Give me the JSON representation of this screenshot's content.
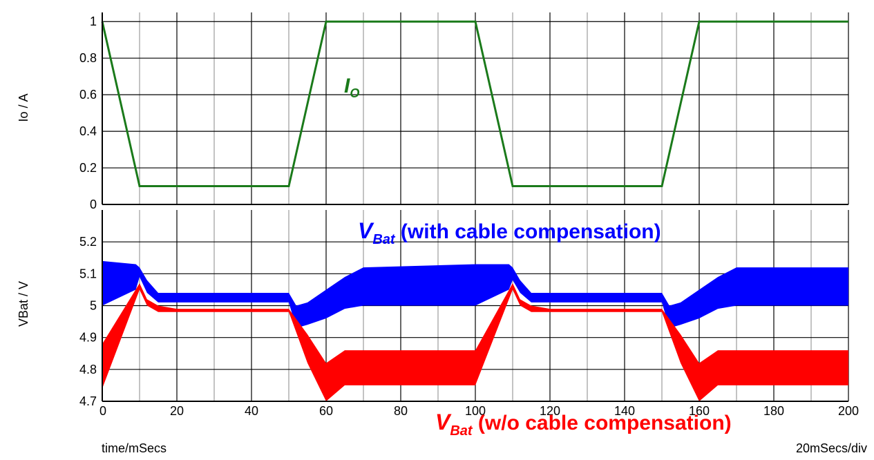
{
  "chart_data": [
    {
      "type": "line",
      "ylabel": "Io / A",
      "xlim": [
        0,
        200
      ],
      "ylim": [
        0,
        1.05
      ],
      "yticks": [
        "0",
        "0.2",
        "0.4",
        "0.6",
        "0.8",
        "1"
      ],
      "grid": true,
      "series": [
        {
          "name": "Io",
          "color": "#1a7a1a",
          "x": [
            0,
            10,
            50,
            60,
            100,
            110,
            150,
            160,
            200
          ],
          "y": [
            1,
            0.1,
            0.1,
            1,
            1,
            0.1,
            0.1,
            1,
            1
          ]
        }
      ],
      "annotation": {
        "main": "I",
        "sub": "O",
        "color": "#1a7a1a"
      }
    },
    {
      "type": "area",
      "ylabel": "VBat / V",
      "xlabel": "time/mSecs",
      "xlim": [
        0,
        200
      ],
      "ylim": [
        4.7,
        5.3
      ],
      "xticks": [
        "0",
        "20",
        "40",
        "60",
        "80",
        "100",
        "120",
        "140",
        "160",
        "180",
        "200"
      ],
      "yticks": [
        "4.7",
        "4.8",
        "4.9",
        "5",
        "5.1",
        "5.2"
      ],
      "grid": true,
      "series": [
        {
          "name": "VBat (with cable compensation)",
          "color": "#0000ff",
          "x": [
            0,
            9,
            10,
            12,
            15,
            20,
            50,
            52,
            55,
            60,
            65,
            70,
            100,
            109,
            110,
            112,
            115,
            120,
            150,
            152,
            155,
            160,
            165,
            170,
            200
          ],
          "upper": [
            5.14,
            5.13,
            5.12,
            5.08,
            5.04,
            5.04,
            5.04,
            5.0,
            5.01,
            5.05,
            5.09,
            5.12,
            5.13,
            5.13,
            5.12,
            5.08,
            5.04,
            5.04,
            5.04,
            5.0,
            5.01,
            5.05,
            5.09,
            5.12,
            5.12
          ],
          "lower": [
            5.0,
            5.05,
            5.09,
            5.04,
            5.01,
            5.01,
            5.01,
            4.93,
            4.94,
            4.96,
            4.99,
            5.0,
            5.0,
            5.05,
            5.08,
            5.04,
            5.01,
            5.01,
            5.01,
            4.93,
            4.94,
            4.96,
            4.99,
            5.0,
            5.0
          ]
        },
        {
          "name": "VBat (w/o cable compensation)",
          "color": "#ff0000",
          "x": [
            0,
            10,
            12,
            15,
            20,
            50,
            55,
            60,
            65,
            100,
            110,
            112,
            115,
            120,
            150,
            155,
            160,
            165,
            200
          ],
          "upper": [
            4.88,
            5.07,
            5.02,
            5.0,
            4.99,
            4.99,
            4.91,
            4.82,
            4.86,
            4.86,
            5.07,
            5.02,
            5.0,
            4.99,
            4.99,
            4.91,
            4.82,
            4.86,
            4.86
          ],
          "lower": [
            4.74,
            5.05,
            5.0,
            4.98,
            4.98,
            4.98,
            4.82,
            4.7,
            4.75,
            4.75,
            5.05,
            5.0,
            4.98,
            4.98,
            4.98,
            4.82,
            4.7,
            4.75,
            4.75
          ]
        }
      ],
      "annotation_blue": {
        "main": "V",
        "sub": "Bat",
        "rest": " (with cable compensation)",
        "color": "#0000ff"
      },
      "annotation_red": {
        "main": "V",
        "sub": "Bat",
        "rest": " (w/o cable compensation)",
        "color": "#ff0000"
      }
    }
  ],
  "footer": {
    "left": "time/mSecs",
    "right": "20mSecs/div"
  }
}
